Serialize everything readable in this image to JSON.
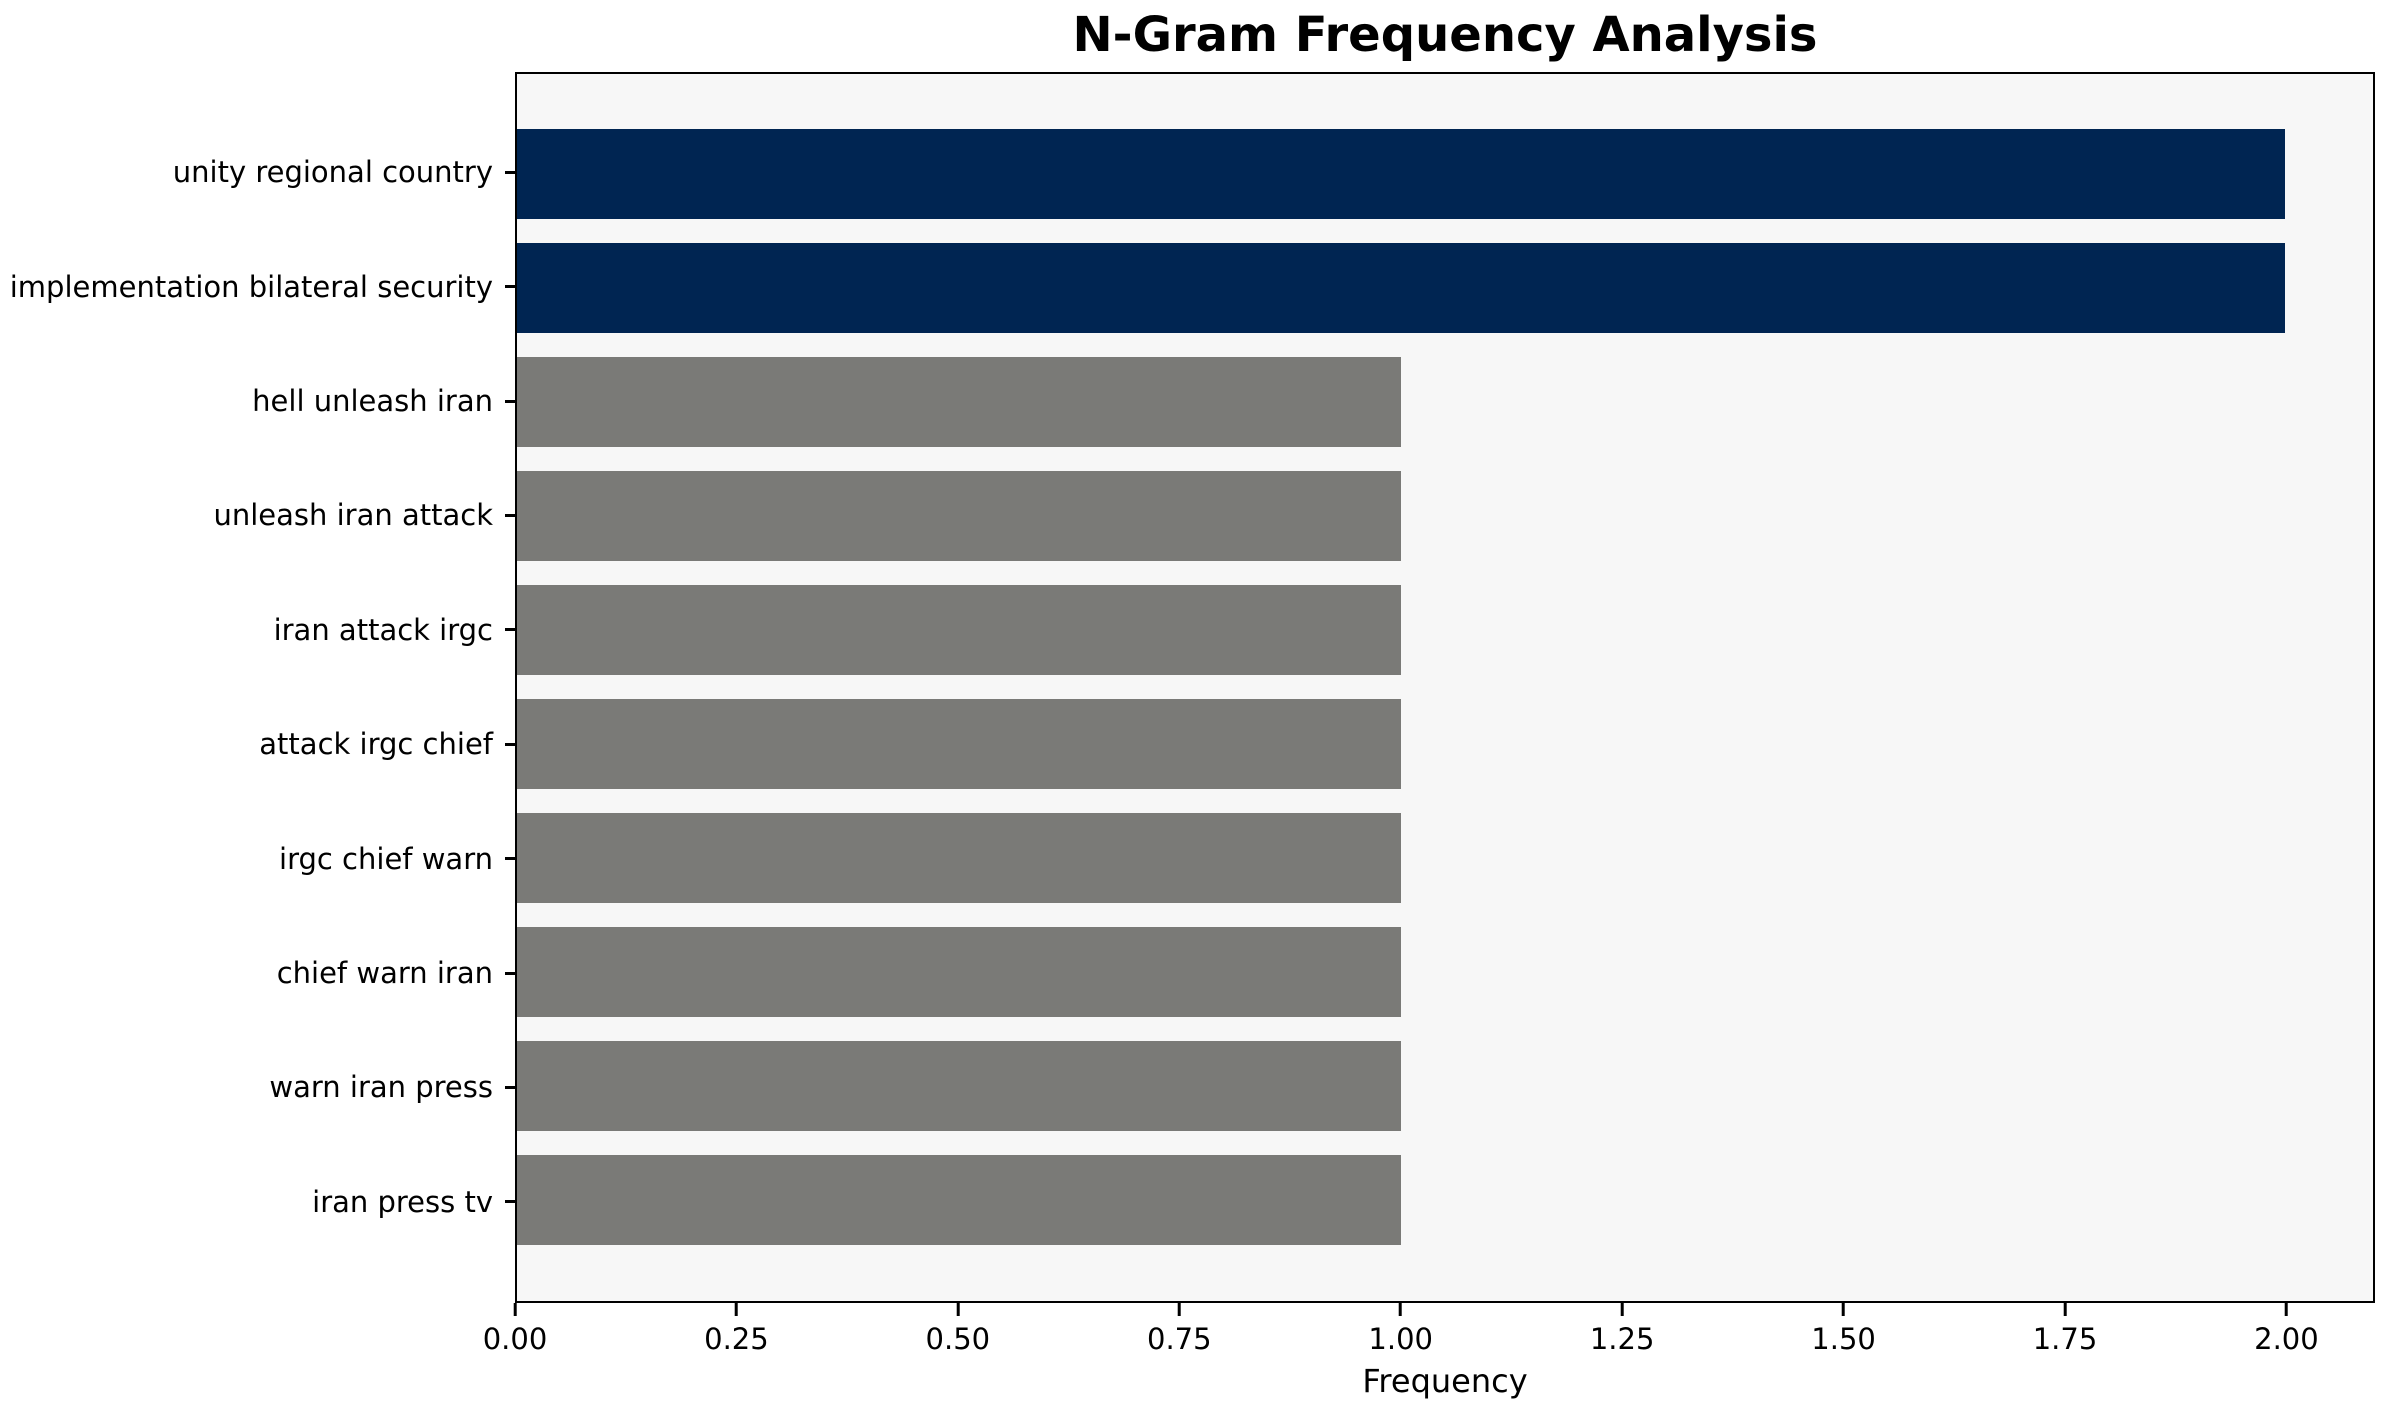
{
  "chart_data": {
    "type": "bar",
    "orientation": "horizontal",
    "title": "N-Gram Frequency Analysis",
    "xlabel": "Frequency",
    "ylabel": "",
    "categories": [
      "unity regional country",
      "implementation bilateral security",
      "hell unleash iran",
      "unleash iran attack",
      "iran attack irgc",
      "attack irgc chief",
      "irgc chief warn",
      "chief warn iran",
      "warn iran press",
      "iran press tv"
    ],
    "values": [
      2,
      2,
      1,
      1,
      1,
      1,
      1,
      1,
      1,
      1
    ],
    "bar_colors": [
      "#002552",
      "#002552",
      "#7a7a77",
      "#7a7a77",
      "#7a7a77",
      "#7a7a77",
      "#7a7a77",
      "#7a7a77",
      "#7a7a77",
      "#7a7a77"
    ],
    "x_tick_labels": [
      "0.00",
      "0.25",
      "0.50",
      "0.75",
      "1.00",
      "1.25",
      "1.50",
      "1.75",
      "2.00"
    ],
    "x_tick_values": [
      0.0,
      0.25,
      0.5,
      0.75,
      1.0,
      1.25,
      1.5,
      1.75,
      2.0
    ],
    "xlim": [
      0,
      2.1
    ],
    "grid": false,
    "legend": false,
    "colors": {
      "bar_high": "#002552",
      "bar_low": "#7a7a77",
      "plot_background": "#f7f7f7",
      "figure_background": "#ffffff",
      "spine": "#000000",
      "text": "#000000"
    }
  }
}
